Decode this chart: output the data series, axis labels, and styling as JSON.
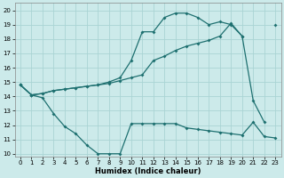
{
  "xlabel": "Humidex (Indice chaleur)",
  "bg_color": "#cceaea",
  "grid_color": "#aad4d4",
  "line_color": "#1e7070",
  "xlim": [
    -0.5,
    23.5
  ],
  "ylim": [
    9.8,
    20.5
  ],
  "yticks": [
    10,
    11,
    12,
    13,
    14,
    15,
    16,
    17,
    18,
    19,
    20
  ],
  "xticks": [
    0,
    1,
    2,
    3,
    4,
    5,
    6,
    7,
    8,
    9,
    10,
    11,
    12,
    13,
    14,
    15,
    16,
    17,
    18,
    19,
    20,
    21,
    22,
    23
  ],
  "line1_x": [
    0,
    1,
    2,
    3,
    4,
    5,
    6,
    7,
    8,
    9,
    10,
    11,
    12,
    13,
    14,
    15,
    16,
    17,
    18,
    19,
    20,
    21,
    22,
    23
  ],
  "line1_y": [
    14.8,
    14.1,
    13.9,
    12.8,
    11.9,
    11.4,
    10.6,
    10.0,
    10.0,
    10.0,
    12.1,
    12.1,
    12.1,
    12.1,
    12.1,
    11.8,
    11.7,
    11.6,
    11.5,
    11.4,
    11.3,
    12.2,
    11.2,
    11.1
  ],
  "line2_x": [
    0,
    1,
    2,
    3,
    4,
    5,
    6,
    7,
    8,
    9,
    10,
    11,
    12,
    13,
    14,
    15,
    16,
    17,
    18,
    19,
    20,
    21,
    22
  ],
  "line2_y": [
    14.8,
    14.1,
    14.2,
    14.4,
    14.5,
    14.6,
    14.7,
    14.8,
    14.9,
    15.1,
    15.3,
    15.5,
    16.5,
    16.8,
    17.2,
    17.5,
    17.7,
    17.9,
    18.2,
    19.1,
    18.2,
    13.7,
    12.2
  ],
  "line3_x": [
    0,
    1,
    2,
    3,
    4,
    5,
    6,
    7,
    8,
    9,
    10,
    11,
    12,
    13,
    14,
    15,
    16,
    17,
    18,
    19,
    20
  ],
  "line3_y": [
    14.8,
    14.1,
    14.2,
    14.4,
    14.5,
    14.6,
    14.7,
    14.8,
    15.0,
    15.3,
    16.5,
    18.5,
    18.5,
    19.5,
    19.8,
    19.8,
    19.5,
    19.0,
    19.2,
    19.0,
    18.2
  ],
  "line3b_x": [
    23
  ],
  "line3b_y": [
    19.0
  ]
}
